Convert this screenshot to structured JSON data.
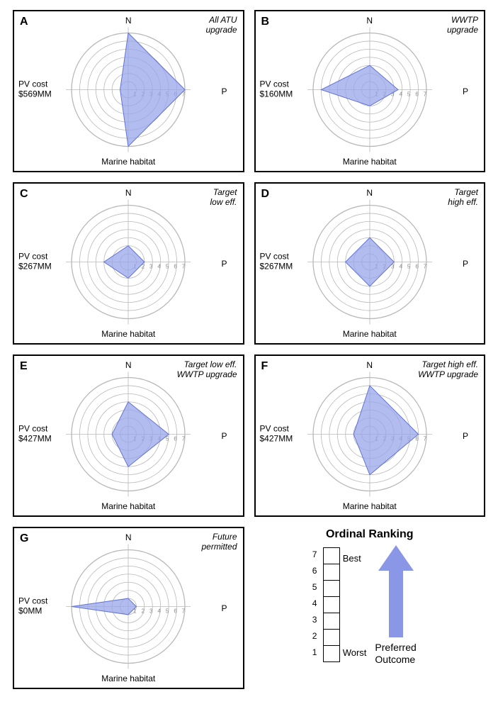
{
  "global": {
    "axis_labels": {
      "n": "N",
      "e": "P",
      "s": "Marine habitat",
      "w_prefix": "PV cost"
    },
    "rings": 7,
    "tick_labels": [
      "1",
      "2",
      "3",
      "4",
      "5",
      "6",
      "7"
    ],
    "series_fill": "#9aa6ea",
    "series_fill_opacity": 0.75,
    "series_stroke": "#6073d6",
    "grid_color": "#b8b8b8",
    "axis_color": "#b8b8b8",
    "tick_color": "#888888",
    "panel_border": "#000000",
    "background": "#ffffff"
  },
  "panels": [
    {
      "id": "A",
      "letter": "A",
      "title": "All ATU\nupgrade",
      "cost": "$569MM",
      "values": {
        "n": 7,
        "e": 7,
        "s": 7,
        "w": 1
      }
    },
    {
      "id": "B",
      "letter": "B",
      "title": "WWTP\nupgrade",
      "cost": "$160MM",
      "values": {
        "n": 3,
        "e": 3.5,
        "s": 2,
        "w": 6
      }
    },
    {
      "id": "C",
      "letter": "C",
      "title": "Target\nlow eff.",
      "cost": "$267MM",
      "values": {
        "n": 2,
        "e": 2,
        "s": 2,
        "w": 3
      }
    },
    {
      "id": "D",
      "letter": "D",
      "title": "Target\nhigh eff.",
      "cost": "$267MM",
      "values": {
        "n": 3,
        "e": 3,
        "s": 3,
        "w": 3
      }
    },
    {
      "id": "E",
      "letter": "E",
      "title": "Target low eff.\nWWTP upgrade",
      "cost": "$427MM",
      "values": {
        "n": 4,
        "e": 5,
        "s": 4,
        "w": 2
      }
    },
    {
      "id": "F",
      "letter": "F",
      "title": "Target high eff.\nWWTP upgrade",
      "cost": "$427MM",
      "values": {
        "n": 6,
        "e": 6,
        "s": 5,
        "w": 2
      }
    },
    {
      "id": "G",
      "letter": "G",
      "title": "Future\npermitted",
      "cost": "$0MM",
      "values": {
        "n": 1,
        "e": 1,
        "s": 1,
        "w": 7
      }
    }
  ],
  "legend": {
    "title": "Ordinal Ranking",
    "levels": [
      "1",
      "2",
      "3",
      "4",
      "5",
      "6",
      "7"
    ],
    "best_label": "Best",
    "worst_label": "Worst",
    "arrow_label": "Preferred\nOutcome",
    "arrow_fill": "#8a96e6"
  }
}
